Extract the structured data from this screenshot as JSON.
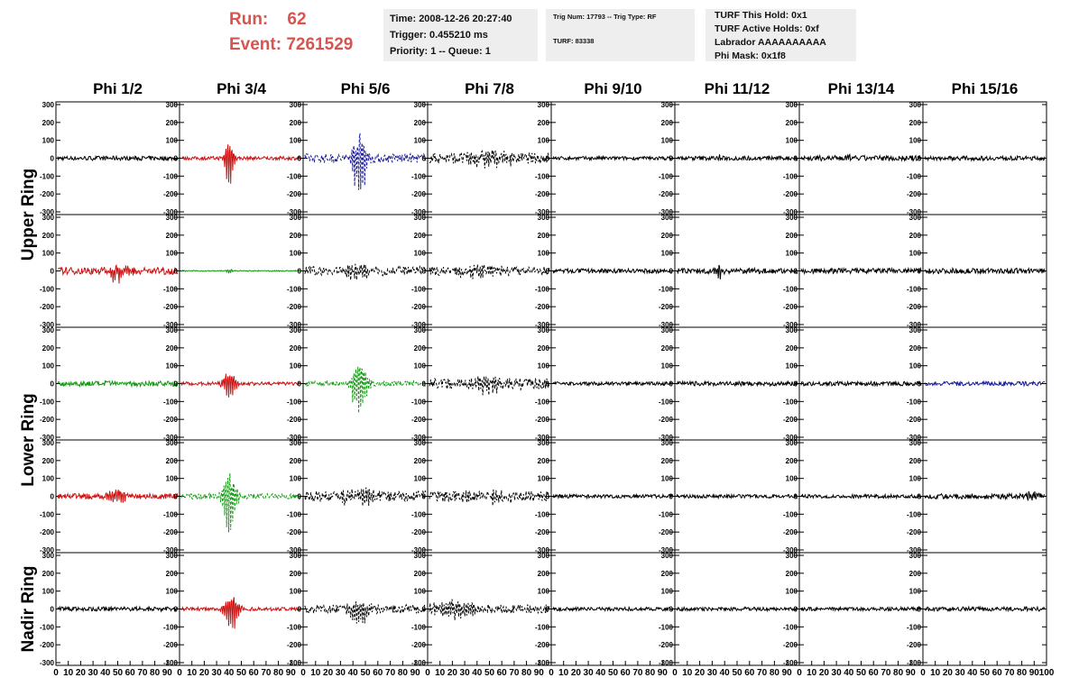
{
  "header": {
    "run_label": "Run:",
    "run_value": "62",
    "event_label": "Event:",
    "event_value": "7261529",
    "time_box": {
      "time": "Time: 2008-12-26 20:27:40",
      "trigger": "Trigger: 0.455210 ms",
      "priority": "Priority: 1 -- Queue: 1"
    },
    "trig_box": {
      "trig": "Trig Num: 17793 -- Trig Type: RF",
      "turf": "TURF: 83338"
    },
    "turf_box": {
      "this_hold": "TURF This Hold: 0x1",
      "active_holds": "TURF Active Holds: 0xf",
      "labrador": "Labrador AAAAAAAAAA",
      "phi_mask": "Phi Mask: 0x1f8"
    },
    "accent_color": "#d9534f"
  },
  "chart_data": {
    "type": "line",
    "columns": [
      "Phi 1/2",
      "Phi 3/4",
      "Phi 5/6",
      "Phi 7/8",
      "Phi 9/10",
      "Phi 11/12",
      "Phi 13/14",
      "Phi 15/16"
    ],
    "ring_labels": [
      {
        "label": "Upper Ring",
        "rows": [
          0,
          1
        ]
      },
      {
        "label": "Lower Ring",
        "rows": [
          2,
          3
        ]
      },
      {
        "label": "Nadir Ring",
        "rows": [
          4
        ]
      }
    ],
    "y_ticks": [
      "300",
      "200",
      "100",
      "0",
      "-100",
      "-200",
      "-300"
    ],
    "ylim": [
      -300,
      300
    ],
    "xlim": [
      0,
      100
    ],
    "x_tick_labels": [
      "0",
      "10",
      "20",
      "30",
      "40",
      "50",
      "60",
      "70",
      "80",
      "90",
      "100"
    ],
    "colors": {
      "black": "#000000",
      "red": "#cc1111",
      "green": "#119911",
      "blue": "#1a1a99"
    },
    "panels": [
      [
        {
          "color": "black",
          "style": "solid",
          "amp": 12,
          "peak": 0,
          "pos": 50,
          "width": 10
        },
        {
          "color": "red",
          "style": "solid",
          "amp": 10,
          "peak": 210,
          "pos": 40,
          "width": 4
        },
        {
          "color": "blue",
          "style": "dashed",
          "amp": 25,
          "peak": 300,
          "pos": 45,
          "width": 6
        },
        {
          "color": "black",
          "style": "dashed",
          "amp": 30,
          "peak": 50,
          "pos": 50,
          "width": 20
        },
        {
          "color": "black",
          "style": "solid",
          "amp": 10,
          "peak": 0,
          "pos": 50,
          "width": 10
        },
        {
          "color": "black",
          "style": "solid",
          "amp": 12,
          "peak": 35,
          "pos": 35,
          "width": 2
        },
        {
          "color": "black",
          "style": "solid",
          "amp": 15,
          "peak": 40,
          "pos": 40,
          "width": 3
        },
        {
          "color": "black",
          "style": "solid",
          "amp": 12,
          "peak": 0,
          "pos": 50,
          "width": 10
        }
      ],
      [
        {
          "color": "red",
          "style": "solid",
          "amp": 20,
          "peak": 70,
          "pos": 50,
          "width": 10
        },
        {
          "color": "green",
          "style": "solid",
          "amp": 3,
          "peak": 20,
          "pos": 40,
          "width": 3
        },
        {
          "color": "black",
          "style": "dashed",
          "amp": 25,
          "peak": 60,
          "pos": 45,
          "width": 12
        },
        {
          "color": "black",
          "style": "dashed",
          "amp": 25,
          "peak": 40,
          "pos": 40,
          "width": 20
        },
        {
          "color": "black",
          "style": "solid",
          "amp": 12,
          "peak": 0,
          "pos": 50,
          "width": 10
        },
        {
          "color": "black",
          "style": "solid",
          "amp": 15,
          "peak": 70,
          "pos": 35,
          "width": 3
        },
        {
          "color": "black",
          "style": "solid",
          "amp": 15,
          "peak": 0,
          "pos": 50,
          "width": 10
        },
        {
          "color": "black",
          "style": "solid",
          "amp": 15,
          "peak": 0,
          "pos": 50,
          "width": 10
        }
      ],
      [
        {
          "color": "green",
          "style": "solid",
          "amp": 15,
          "peak": 0,
          "pos": 50,
          "width": 10
        },
        {
          "color": "red",
          "style": "solid",
          "amp": 10,
          "peak": 150,
          "pos": 40,
          "width": 5
        },
        {
          "color": "green",
          "style": "dashed",
          "amp": 15,
          "peak": 280,
          "pos": 45,
          "width": 6
        },
        {
          "color": "black",
          "style": "dashed",
          "amp": 30,
          "peak": 50,
          "pos": 50,
          "width": 20
        },
        {
          "color": "black",
          "style": "solid",
          "amp": 10,
          "peak": 0,
          "pos": 50,
          "width": 10
        },
        {
          "color": "black",
          "style": "solid",
          "amp": 12,
          "peak": 0,
          "pos": 50,
          "width": 10
        },
        {
          "color": "black",
          "style": "solid",
          "amp": 12,
          "peak": 0,
          "pos": 50,
          "width": 10
        },
        {
          "color": "blue",
          "style": "solid",
          "amp": 12,
          "peak": 0,
          "pos": 50,
          "width": 10
        }
      ],
      [
        {
          "color": "red",
          "style": "solid",
          "amp": 15,
          "peak": 70,
          "pos": 48,
          "width": 8
        },
        {
          "color": "green",
          "style": "dashed",
          "amp": 15,
          "peak": 270,
          "pos": 40,
          "width": 6
        },
        {
          "color": "black",
          "style": "dashed",
          "amp": 30,
          "peak": 60,
          "pos": 45,
          "width": 15
        },
        {
          "color": "black",
          "style": "dashed",
          "amp": 30,
          "peak": 40,
          "pos": 50,
          "width": 20
        },
        {
          "color": "black",
          "style": "solid",
          "amp": 10,
          "peak": 0,
          "pos": 50,
          "width": 10
        },
        {
          "color": "black",
          "style": "solid",
          "amp": 10,
          "peak": 0,
          "pos": 50,
          "width": 10
        },
        {
          "color": "black",
          "style": "solid",
          "amp": 10,
          "peak": 0,
          "pos": 50,
          "width": 10
        },
        {
          "color": "black",
          "style": "solid",
          "amp": 15,
          "peak": 40,
          "pos": 90,
          "width": 5
        }
      ],
      [
        {
          "color": "black",
          "style": "solid",
          "amp": 12,
          "peak": 0,
          "pos": 50,
          "width": 10
        },
        {
          "color": "red",
          "style": "solid",
          "amp": 10,
          "peak": 160,
          "pos": 42,
          "width": 6
        },
        {
          "color": "black",
          "style": "dashed",
          "amp": 25,
          "peak": 110,
          "pos": 45,
          "width": 8
        },
        {
          "color": "black",
          "style": "dashed",
          "amp": 25,
          "peak": 60,
          "pos": 20,
          "width": 20
        },
        {
          "color": "black",
          "style": "solid",
          "amp": 10,
          "peak": 0,
          "pos": 50,
          "width": 10
        },
        {
          "color": "black",
          "style": "solid",
          "amp": 10,
          "peak": 0,
          "pos": 50,
          "width": 10
        },
        {
          "color": "black",
          "style": "solid",
          "amp": 10,
          "peak": 0,
          "pos": 50,
          "width": 10
        },
        {
          "color": "black",
          "style": "solid",
          "amp": 12,
          "peak": 0,
          "pos": 50,
          "width": 10
        }
      ]
    ]
  }
}
